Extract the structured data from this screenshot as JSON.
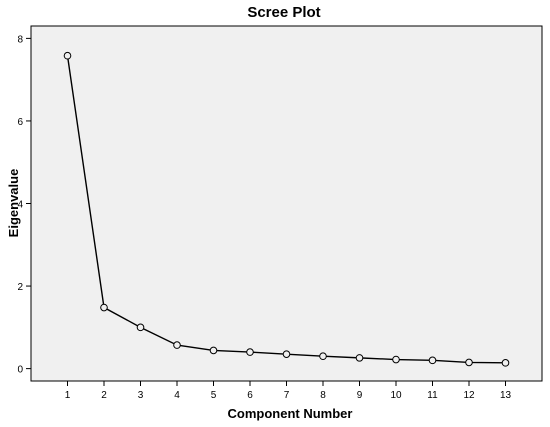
{
  "chart_data": {
    "type": "line",
    "title": "Scree Plot",
    "xlabel": "Component Number",
    "ylabel": "Eigenvalue",
    "x": [
      1,
      2,
      3,
      4,
      5,
      6,
      7,
      8,
      9,
      10,
      11,
      12,
      13
    ],
    "series": [
      {
        "values": [
          7.58,
          1.48,
          1.0,
          0.57,
          0.44,
          0.4,
          0.35,
          0.3,
          0.26,
          0.22,
          0.2,
          0.15,
          0.14
        ]
      }
    ],
    "xlim": [
      0,
      14
    ],
    "ylim": [
      -0.3,
      8.3
    ],
    "x_ticks": [
      "1",
      "2",
      "3",
      "4",
      "5",
      "6",
      "7",
      "8",
      "9",
      "10",
      "11",
      "12",
      "13"
    ],
    "y_ticks": [
      "0",
      "2",
      "4",
      "6",
      "8"
    ],
    "grid": false,
    "legend": "none",
    "marker": "open-circle",
    "colors": {
      "plot_background": "#f0f0f0",
      "line": "#000000",
      "marker_fill": "#f0f0f0",
      "frame": "#000000"
    }
  }
}
